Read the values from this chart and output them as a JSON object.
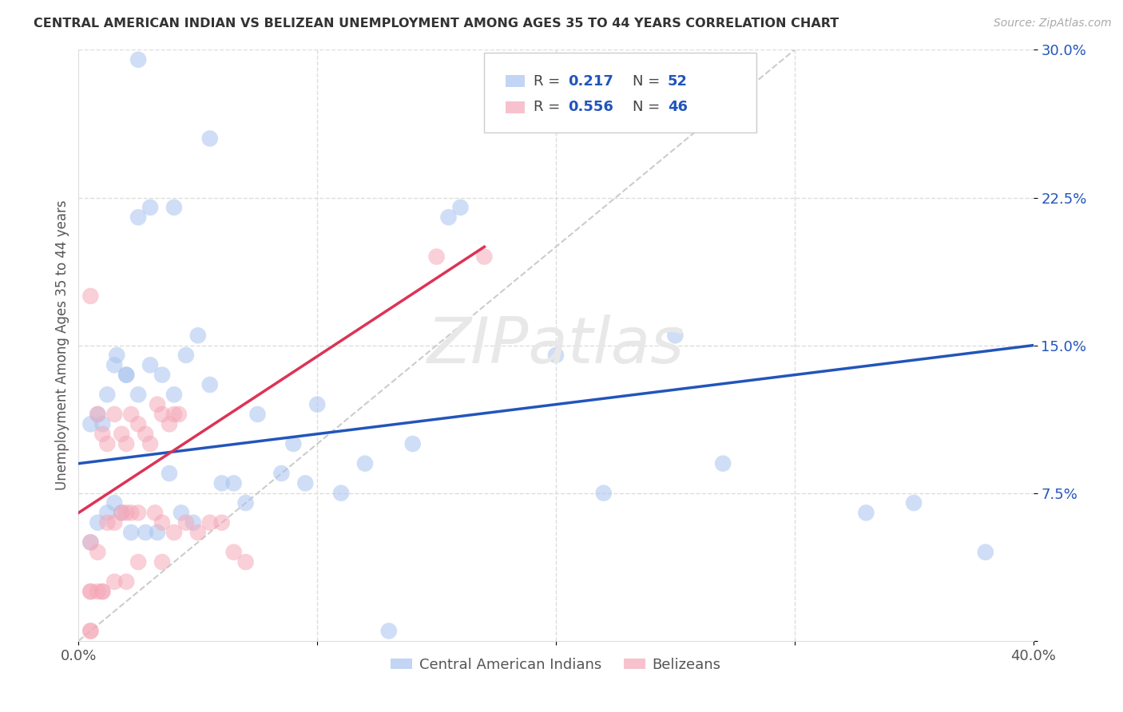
{
  "title": "CENTRAL AMERICAN INDIAN VS BELIZEAN UNEMPLOYMENT AMONG AGES 35 TO 44 YEARS CORRELATION CHART",
  "source": "Source: ZipAtlas.com",
  "ylabel": "Unemployment Among Ages 35 to 44 years",
  "xlim": [
    0.0,
    0.4
  ],
  "ylim": [
    0.0,
    0.3
  ],
  "yticks": [
    0.0,
    0.075,
    0.15,
    0.225,
    0.3
  ],
  "ytick_labels": [
    "",
    "7.5%",
    "15.0%",
    "22.5%",
    "30.0%"
  ],
  "xticks": [
    0.0,
    0.1,
    0.2,
    0.3,
    0.4
  ],
  "xtick_labels": [
    "0.0%",
    "",
    "",
    "",
    "40.0%"
  ],
  "legend_label1": "Central American Indians",
  "legend_label2": "Belizeans",
  "blue_color": "#a8c4f0",
  "pink_color": "#f5a8b8",
  "trend_blue": "#2255bb",
  "trend_pink": "#dd3355",
  "ref_line_color": "#cccccc",
  "grid_color": "#dddddd",
  "watermark": "ZIPatlas",
  "blue_r": "0.217",
  "blue_n": "52",
  "pink_r": "0.556",
  "pink_n": "46",
  "blue_scatter_x": [
    0.025,
    0.008,
    0.012,
    0.016,
    0.02,
    0.025,
    0.03,
    0.035,
    0.04,
    0.045,
    0.05,
    0.055,
    0.06,
    0.07,
    0.09,
    0.1,
    0.12,
    0.14,
    0.155,
    0.16,
    0.2,
    0.22,
    0.25,
    0.005,
    0.008,
    0.012,
    0.015,
    0.018,
    0.022,
    0.028,
    0.033,
    0.038,
    0.043,
    0.048,
    0.055,
    0.065,
    0.075,
    0.085,
    0.095,
    0.11,
    0.13,
    0.27,
    0.33,
    0.35,
    0.38,
    0.005,
    0.01,
    0.015,
    0.02,
    0.025,
    0.03,
    0.04
  ],
  "blue_scatter_y": [
    0.295,
    0.115,
    0.125,
    0.145,
    0.135,
    0.125,
    0.14,
    0.135,
    0.125,
    0.145,
    0.155,
    0.13,
    0.08,
    0.07,
    0.1,
    0.12,
    0.09,
    0.1,
    0.215,
    0.22,
    0.145,
    0.075,
    0.155,
    0.05,
    0.06,
    0.065,
    0.07,
    0.065,
    0.055,
    0.055,
    0.055,
    0.085,
    0.065,
    0.06,
    0.255,
    0.08,
    0.115,
    0.085,
    0.08,
    0.075,
    0.005,
    0.09,
    0.065,
    0.07,
    0.045,
    0.11,
    0.11,
    0.14,
    0.135,
    0.215,
    0.22,
    0.22
  ],
  "pink_scatter_x": [
    0.005,
    0.005,
    0.005,
    0.005,
    0.008,
    0.008,
    0.01,
    0.01,
    0.012,
    0.012,
    0.015,
    0.015,
    0.018,
    0.018,
    0.02,
    0.02,
    0.022,
    0.022,
    0.025,
    0.025,
    0.028,
    0.03,
    0.032,
    0.033,
    0.035,
    0.035,
    0.035,
    0.038,
    0.04,
    0.04,
    0.042,
    0.045,
    0.05,
    0.055,
    0.06,
    0.065,
    0.07,
    0.005,
    0.008,
    0.01,
    0.015,
    0.02,
    0.025,
    0.17,
    0.15,
    0.005
  ],
  "pink_scatter_y": [
    0.175,
    0.05,
    0.025,
    0.005,
    0.115,
    0.045,
    0.105,
    0.025,
    0.1,
    0.06,
    0.115,
    0.06,
    0.105,
    0.065,
    0.1,
    0.065,
    0.115,
    0.065,
    0.11,
    0.065,
    0.105,
    0.1,
    0.065,
    0.12,
    0.115,
    0.06,
    0.04,
    0.11,
    0.115,
    0.055,
    0.115,
    0.06,
    0.055,
    0.06,
    0.06,
    0.045,
    0.04,
    0.025,
    0.025,
    0.025,
    0.03,
    0.03,
    0.04,
    0.195,
    0.195,
    0.005
  ]
}
